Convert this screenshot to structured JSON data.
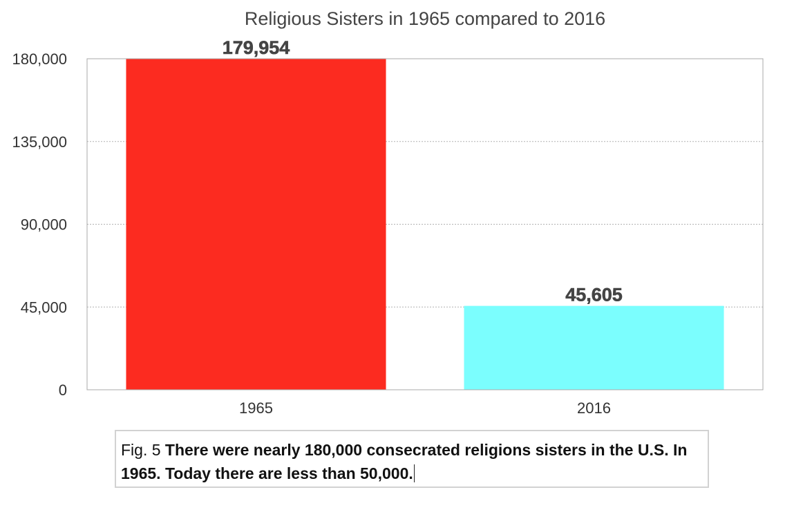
{
  "chart_data": {
    "type": "bar",
    "title": "Religious Sisters in 1965 compared to 2016",
    "categories": [
      "1965",
      "2016"
    ],
    "values": [
      179954,
      45605
    ],
    "value_labels": [
      "179,954",
      "45,605"
    ],
    "colors": [
      "#fc2b20",
      "#7bfefe"
    ],
    "ylim": [
      0,
      180000
    ],
    "yticks": [
      0,
      45000,
      90000,
      135000,
      180000
    ],
    "ytick_labels": [
      "0",
      "45,000",
      "90,000",
      "135,000",
      "180,000"
    ],
    "xlabel": "",
    "ylabel": "",
    "grid": true,
    "legend": "none"
  },
  "caption": {
    "prefix": "Fig. 5",
    "text": "There were nearly 180,000 consecrated religions sisters in the U.S. In 1965. Today there are less than 50,000."
  }
}
